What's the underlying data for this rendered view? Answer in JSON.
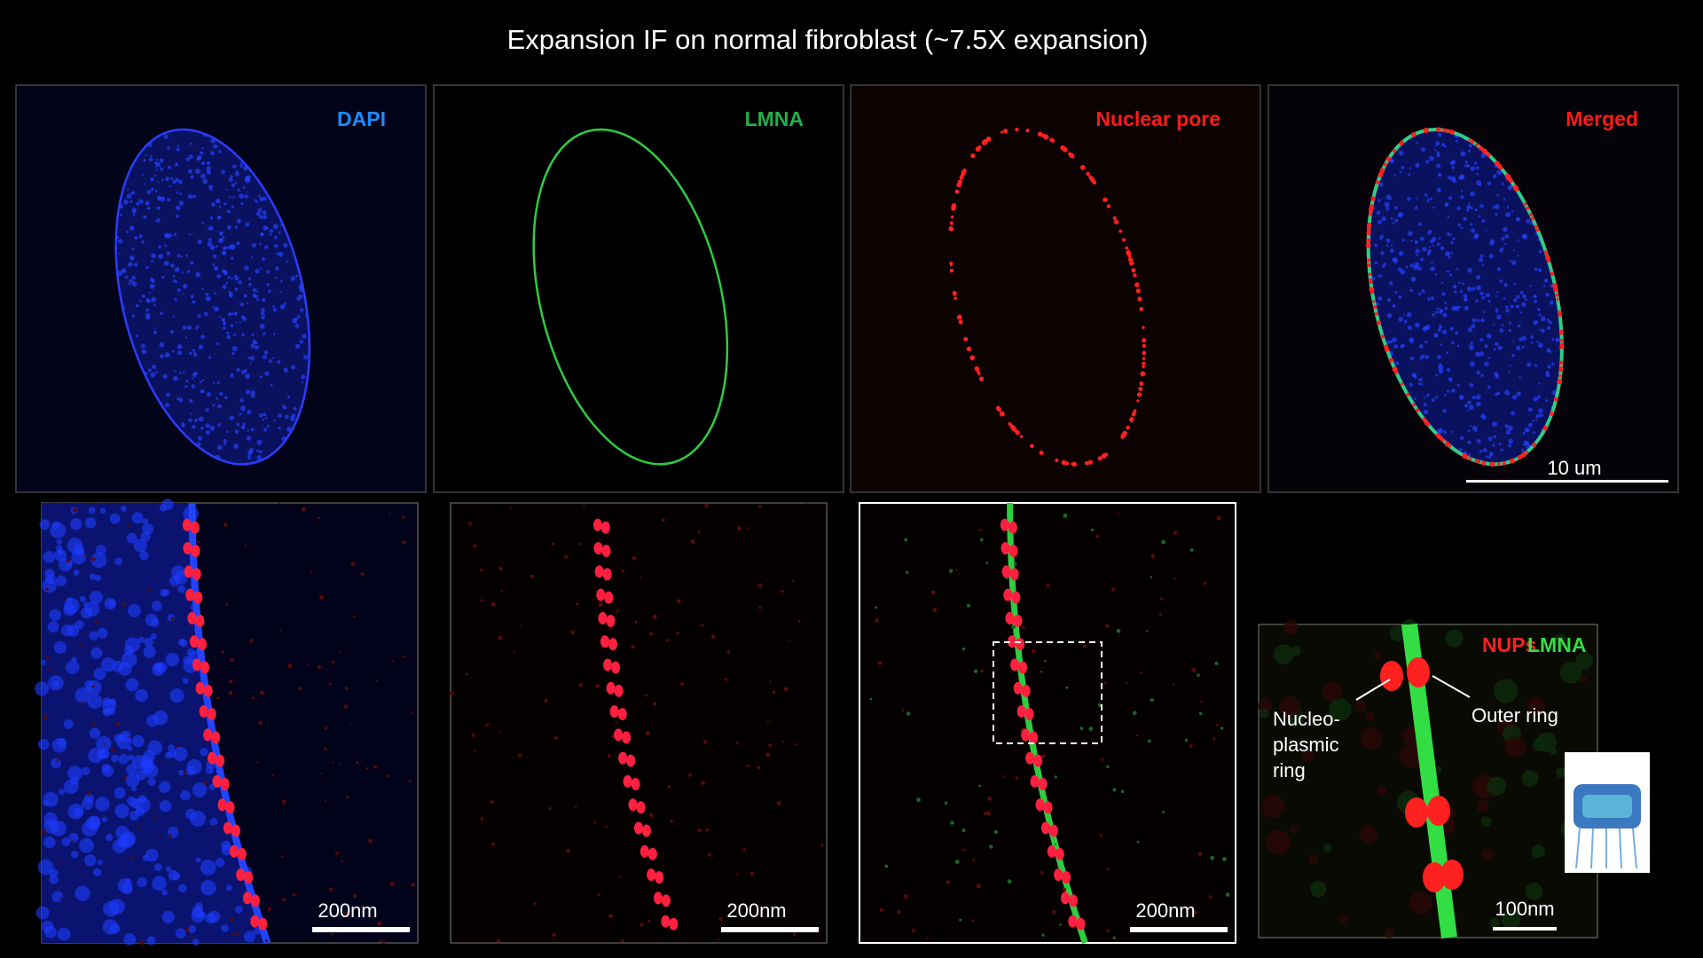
{
  "title": "Expansion IF on normal fibroblast (~7.5X expansion)",
  "panels": [
    {
      "label": "DAPI"
    },
    {
      "label": "LMNA"
    },
    {
      "label": "Nuclear pore"
    },
    {
      "label": "Merged"
    }
  ],
  "scale_bars": {
    "top": "10 um",
    "bottom": [
      "200nm",
      "200nm",
      "200nm"
    ],
    "inset": "100nm"
  },
  "inset": {
    "legend": [
      "NUPs",
      "LMNA"
    ],
    "nucleoplasmic_ring": [
      "Nucleo-",
      "plasmic",
      "ring"
    ],
    "outer_ring": "Outer ring"
  }
}
